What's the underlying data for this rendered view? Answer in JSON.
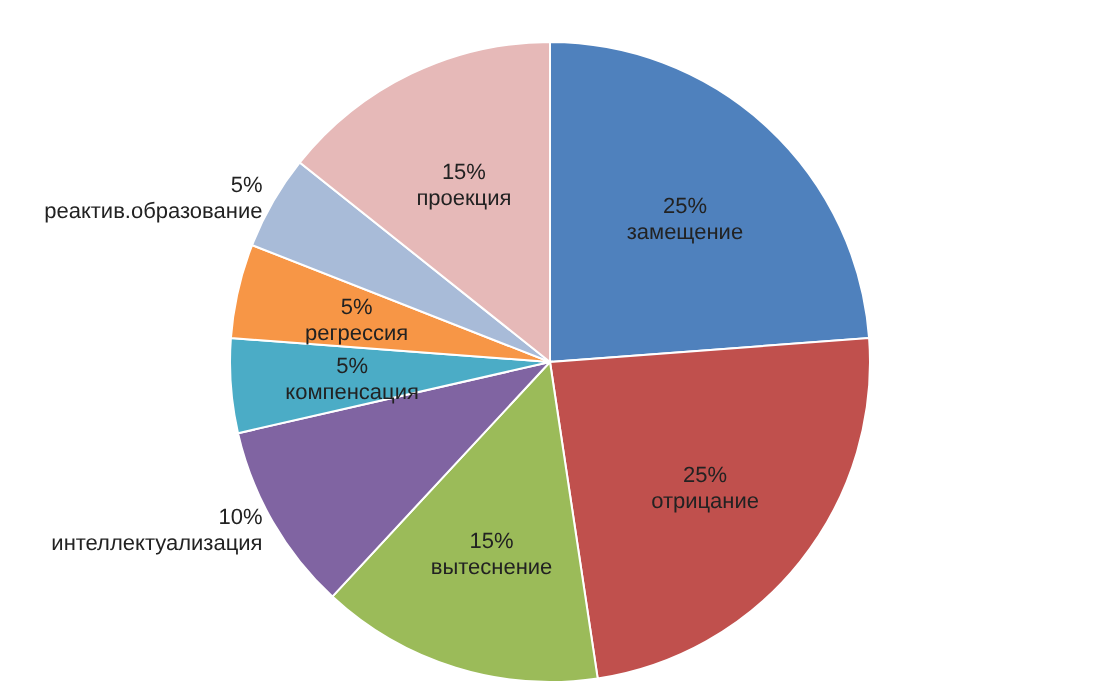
{
  "chart_data": {
    "type": "pie",
    "categories": [
      "замещение",
      "отрицание",
      "вытеснение",
      "интеллектуализация",
      "компенсация",
      "регрессия",
      "реактив.образование",
      "проекция"
    ],
    "values": [
      25,
      25,
      15,
      10,
      5,
      5,
      5,
      15
    ],
    "value_labels": [
      "25%",
      "25%",
      "15%",
      "10%",
      "5%",
      "5%",
      "5%",
      "15%"
    ],
    "colors": [
      "#4f81bd",
      "#c0504d",
      "#9bbb59",
      "#8064a2",
      "#4bacc6",
      "#f79646",
      "#a8bbd8",
      "#e6b9b8"
    ],
    "legend": false
  }
}
